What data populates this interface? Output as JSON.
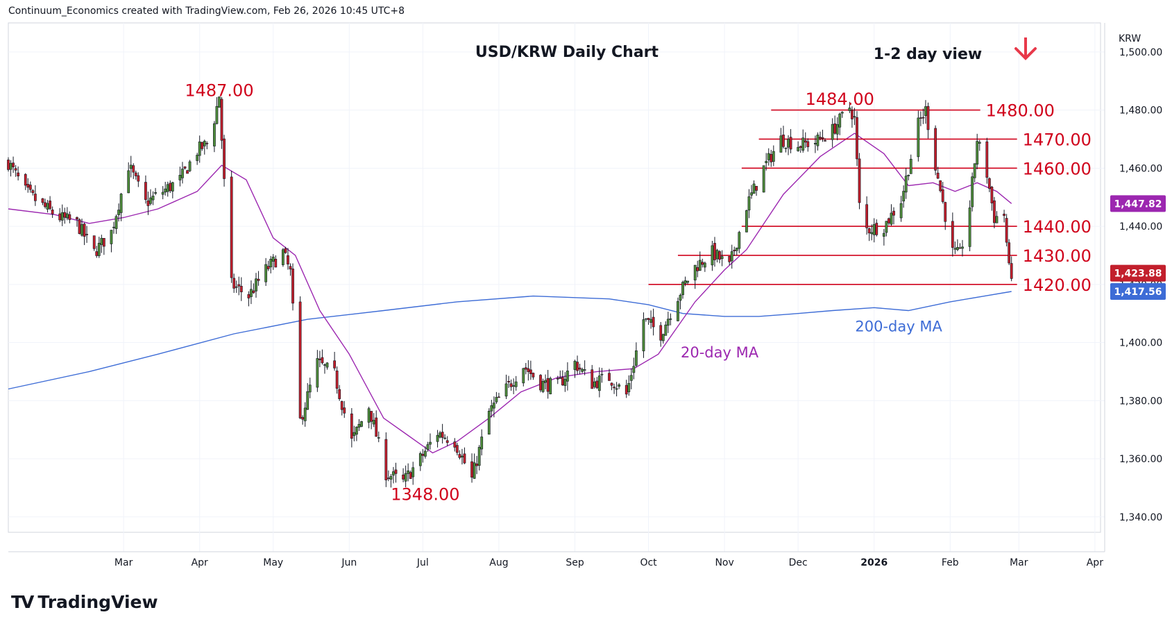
{
  "header": {
    "credit": "Continuum_Economics created with TradingView.com, Feb 26, 2026 10:45 UTC+8"
  },
  "branding": {
    "logo_glyph": "TV",
    "name": "TradingView"
  },
  "chart_data": {
    "type": "candlestick",
    "title": "USD/KRW Daily Chart",
    "view_label": "1-2 day view",
    "view_direction": "down",
    "currency_label": "KRW",
    "ylim": [
      1328,
      1510
    ],
    "y_ticks": [
      1340,
      1360,
      1380,
      1400,
      1420,
      1440,
      1460,
      1480,
      1500
    ],
    "y_tick_labels": [
      "1,340.00",
      "1,360.00",
      "1,380.00",
      "1,400.00",
      "1,420.00",
      "1,440.00",
      "1,460.00",
      "1,480.00",
      "1,500.00"
    ],
    "x_range": [
      "2025-01-13",
      "2026-04-05"
    ],
    "x_ticks": [
      {
        "date": "2025-03-01",
        "label": "Mar"
      },
      {
        "date": "2025-04-01",
        "label": "Apr"
      },
      {
        "date": "2025-05-01",
        "label": "May"
      },
      {
        "date": "2025-06-01",
        "label": "Jun"
      },
      {
        "date": "2025-07-01",
        "label": "Jul"
      },
      {
        "date": "2025-08-01",
        "label": "Aug"
      },
      {
        "date": "2025-09-01",
        "label": "Sep"
      },
      {
        "date": "2025-10-01",
        "label": "Oct"
      },
      {
        "date": "2025-11-01",
        "label": "Nov"
      },
      {
        "date": "2025-12-01",
        "label": "Dec"
      },
      {
        "date": "2026-01-01",
        "label": "2026"
      },
      {
        "date": "2026-02-01",
        "label": "Feb"
      },
      {
        "date": "2026-03-01",
        "label": "Mar"
      },
      {
        "date": "2026-04-01",
        "label": "Apr"
      }
    ],
    "grid": true,
    "colors": {
      "up": "#4e8c3a",
      "down": "#c21f2c",
      "wick": "#131722",
      "level": "#d0021b",
      "ma20": "#9c27b0",
      "ma200": "#3d6cd6",
      "last_price_bg": "#c21f2c",
      "ma20_tag_bg": "#9c27b0",
      "ma200_tag_bg": "#3d6cd6",
      "arrow": "#e8394a"
    },
    "price_anchors": [
      [
        "2025-01-13",
        1462
      ],
      [
        "2025-01-20",
        1452
      ],
      [
        "2025-01-27",
        1447
      ],
      [
        "2025-02-03",
        1443
      ],
      [
        "2025-02-10",
        1441
      ],
      [
        "2025-02-17",
        1431
      ],
      [
        "2025-02-24",
        1438
      ],
      [
        "2025-03-03",
        1461
      ],
      [
        "2025-03-10",
        1448
      ],
      [
        "2025-03-17",
        1452
      ],
      [
        "2025-03-24",
        1456
      ],
      [
        "2025-03-31",
        1466
      ],
      [
        "2025-04-05",
        1469
      ],
      [
        "2025-04-09",
        1485
      ],
      [
        "2025-04-11",
        1455
      ],
      [
        "2025-04-14",
        1420
      ],
      [
        "2025-04-21",
        1416
      ],
      [
        "2025-04-28",
        1425
      ],
      [
        "2025-05-05",
        1431
      ],
      [
        "2025-05-08",
        1424
      ],
      [
        "2025-05-12",
        1373
      ],
      [
        "2025-05-19",
        1393
      ],
      [
        "2025-05-26",
        1389
      ],
      [
        "2025-06-02",
        1366
      ],
      [
        "2025-06-09",
        1378
      ],
      [
        "2025-06-16",
        1355
      ],
      [
        "2025-06-23",
        1352
      ],
      [
        "2025-06-30",
        1360
      ],
      [
        "2025-07-07",
        1369
      ],
      [
        "2025-07-14",
        1366
      ],
      [
        "2025-07-21",
        1353
      ],
      [
        "2025-07-28",
        1376
      ],
      [
        "2025-08-04",
        1384
      ],
      [
        "2025-08-11",
        1392
      ],
      [
        "2025-08-18",
        1386
      ],
      [
        "2025-08-25",
        1385
      ],
      [
        "2025-09-01",
        1393
      ],
      [
        "2025-09-08",
        1386
      ],
      [
        "2025-09-15",
        1388
      ],
      [
        "2025-09-22",
        1382
      ],
      [
        "2025-09-29",
        1408
      ],
      [
        "2025-10-06",
        1403
      ],
      [
        "2025-10-13",
        1416
      ],
      [
        "2025-10-20",
        1426
      ],
      [
        "2025-10-27",
        1431
      ],
      [
        "2025-11-03",
        1426
      ],
      [
        "2025-11-10",
        1447
      ],
      [
        "2025-11-17",
        1460
      ],
      [
        "2025-11-24",
        1470
      ],
      [
        "2025-12-01",
        1468
      ],
      [
        "2025-12-08",
        1469
      ],
      [
        "2025-12-15",
        1473
      ],
      [
        "2025-12-22",
        1481
      ],
      [
        "2025-12-24",
        1477
      ],
      [
        "2025-12-26",
        1447
      ],
      [
        "2025-12-29",
        1439
      ],
      [
        "2026-01-05",
        1440
      ],
      [
        "2026-01-12",
        1449
      ],
      [
        "2026-01-19",
        1475
      ],
      [
        "2026-01-22",
        1480
      ],
      [
        "2026-01-26",
        1461
      ],
      [
        "2026-02-02",
        1431
      ],
      [
        "2026-02-05",
        1430
      ],
      [
        "2026-02-09",
        1447
      ],
      [
        "2026-02-12",
        1470
      ],
      [
        "2026-02-16",
        1458
      ],
      [
        "2026-02-19",
        1443
      ],
      [
        "2026-02-23",
        1444
      ],
      [
        "2026-02-25",
        1425
      ],
      [
        "2026-02-26",
        1424
      ]
    ],
    "last_price": 1423.88,
    "last_price_label": "1,423.88",
    "ma20": {
      "name": "20-day MA",
      "value_label": "1,447.82",
      "points": [
        [
          "2025-01-13",
          1446
        ],
        [
          "2025-02-01",
          1444
        ],
        [
          "2025-02-15",
          1441
        ],
        [
          "2025-03-01",
          1443
        ],
        [
          "2025-03-15",
          1446
        ],
        [
          "2025-03-31",
          1452
        ],
        [
          "2025-04-10",
          1461
        ],
        [
          "2025-04-20",
          1456
        ],
        [
          "2025-05-01",
          1436
        ],
        [
          "2025-05-10",
          1430
        ],
        [
          "2025-05-20",
          1411
        ],
        [
          "2025-06-01",
          1396
        ],
        [
          "2025-06-15",
          1374
        ],
        [
          "2025-06-25",
          1368
        ],
        [
          "2025-07-05",
          1362
        ],
        [
          "2025-07-15",
          1366
        ],
        [
          "2025-07-28",
          1374
        ],
        [
          "2025-08-10",
          1383
        ],
        [
          "2025-08-25",
          1388
        ],
        [
          "2025-09-10",
          1390
        ],
        [
          "2025-09-25",
          1391
        ],
        [
          "2025-10-05",
          1396
        ],
        [
          "2025-10-20",
          1414
        ],
        [
          "2025-11-01",
          1425
        ],
        [
          "2025-11-10",
          1432
        ],
        [
          "2025-11-25",
          1451
        ],
        [
          "2025-12-10",
          1464
        ],
        [
          "2025-12-24",
          1472
        ],
        [
          "2026-01-05",
          1465
        ],
        [
          "2026-01-15",
          1454
        ],
        [
          "2026-01-25",
          1455
        ],
        [
          "2026-02-03",
          1452
        ],
        [
          "2026-02-12",
          1455
        ],
        [
          "2026-02-20",
          1452
        ],
        [
          "2026-02-26",
          1447.82
        ]
      ]
    },
    "ma200": {
      "name": "200-day MA",
      "value_label": "1,417.56",
      "points": [
        [
          "2025-01-13",
          1384
        ],
        [
          "2025-02-15",
          1390
        ],
        [
          "2025-03-15",
          1396
        ],
        [
          "2025-04-15",
          1403
        ],
        [
          "2025-05-15",
          1408
        ],
        [
          "2025-06-15",
          1411
        ],
        [
          "2025-07-15",
          1414
        ],
        [
          "2025-08-15",
          1416
        ],
        [
          "2025-09-15",
          1415
        ],
        [
          "2025-10-01",
          1413
        ],
        [
          "2025-10-15",
          1410
        ],
        [
          "2025-11-01",
          1409
        ],
        [
          "2025-11-15",
          1409
        ],
        [
          "2025-12-01",
          1410
        ],
        [
          "2025-12-15",
          1411
        ],
        [
          "2026-01-01",
          1412
        ],
        [
          "2026-01-15",
          1411
        ],
        [
          "2026-02-01",
          1414
        ],
        [
          "2026-02-15",
          1416
        ],
        [
          "2026-02-26",
          1417.56
        ]
      ]
    },
    "levels": [
      {
        "value": 1480,
        "label": "1480.00",
        "from": "2025-11-20",
        "to": "2026-02-11"
      },
      {
        "value": 1470,
        "label": "1470.00",
        "from": "2025-11-15",
        "to": "2026-02-26"
      },
      {
        "value": 1460,
        "label": "1460.00",
        "from": "2025-11-08",
        "to": "2026-02-26"
      },
      {
        "value": 1440,
        "label": "1440.00",
        "from": "2025-11-08",
        "to": "2026-02-26"
      },
      {
        "value": 1430,
        "label": "1430.00",
        "from": "2025-10-13",
        "to": "2026-02-26"
      },
      {
        "value": 1420,
        "label": "1420.00",
        "from": "2025-10-01",
        "to": "2026-02-26"
      }
    ],
    "annotations": [
      {
        "text": "1487.00",
        "date": "2025-04-09",
        "value": 1487,
        "color": "#d0021b"
      },
      {
        "text": "1484.00",
        "date": "2025-12-18",
        "value": 1484,
        "color": "#d0021b"
      },
      {
        "text": "1348.00",
        "date": "2025-07-02",
        "value": 1348,
        "color": "#d0021b"
      },
      {
        "text": "20-day MA",
        "date": "2025-10-30",
        "value": 1397,
        "color": "#9c27b0"
      },
      {
        "text": "200-day MA",
        "date": "2026-01-11",
        "value": 1406,
        "color": "#3d6cd6"
      }
    ]
  }
}
